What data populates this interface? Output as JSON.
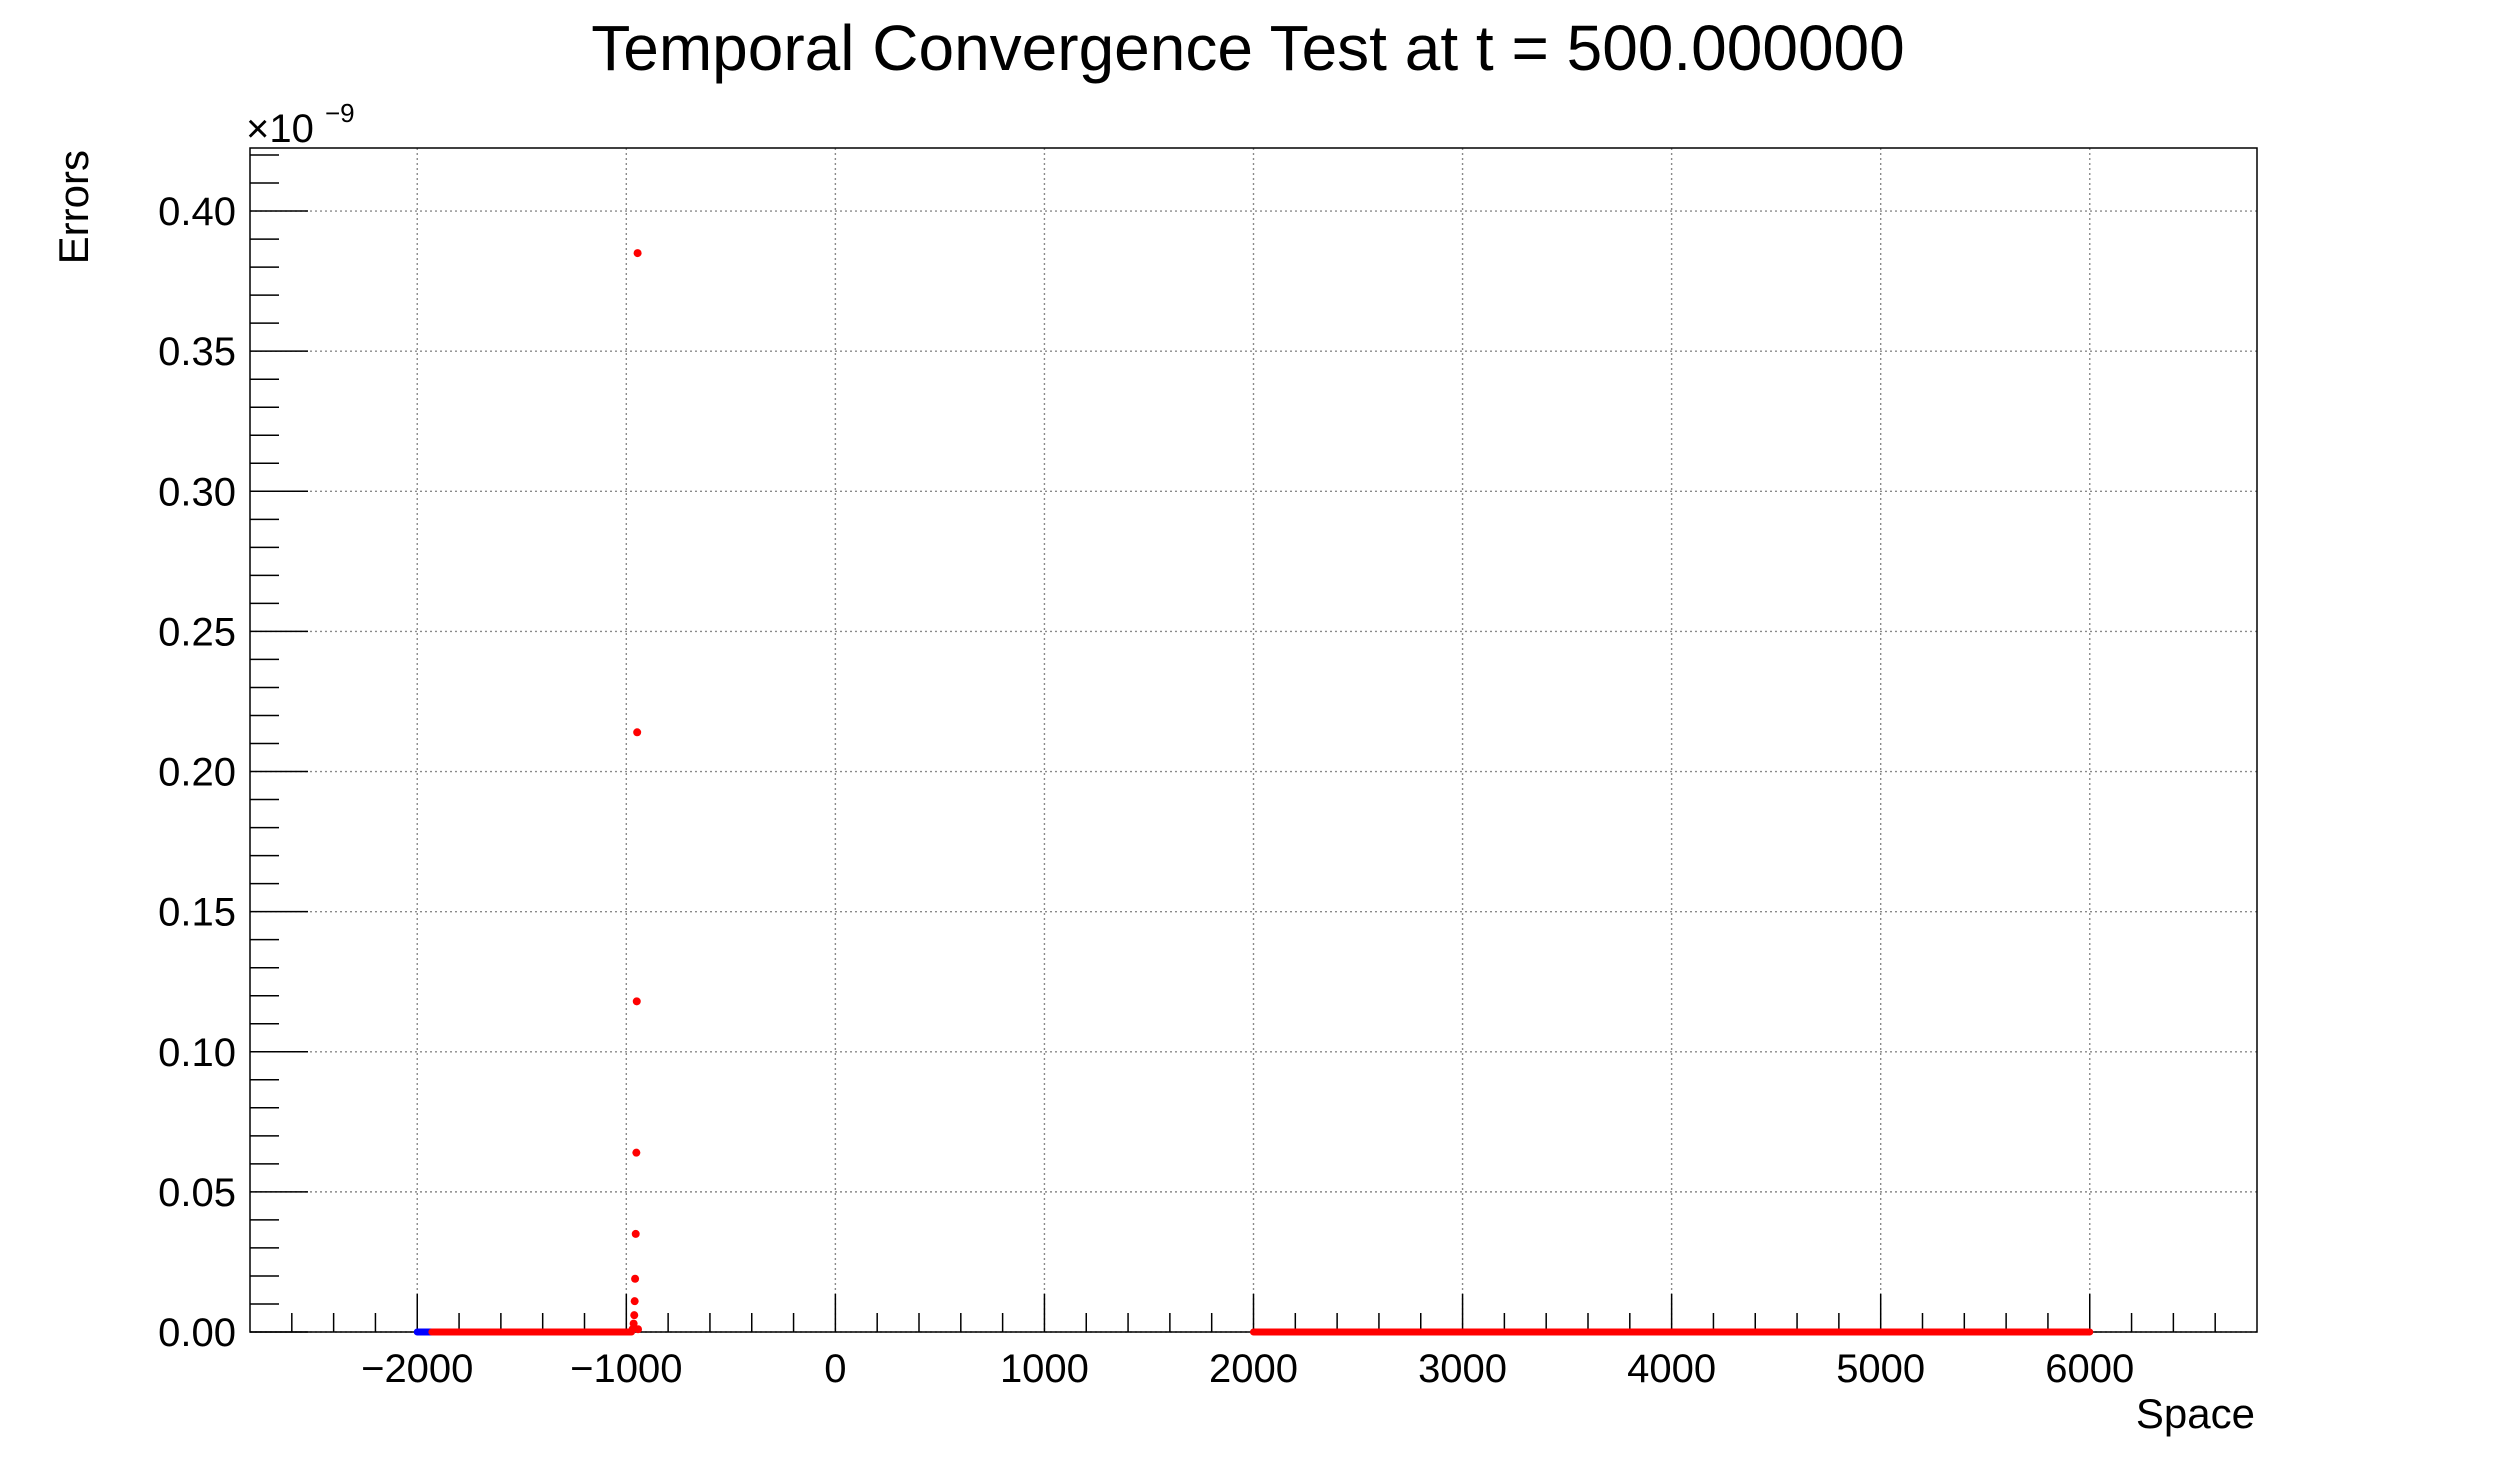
{
  "chart_data": {
    "type": "scatter",
    "title": "Temporal Convergence Test at t = 500.000000",
    "xlabel": "Space",
    "ylabel": "Errors",
    "y_multiplier_label": "×10",
    "y_multiplier_exponent": "−9",
    "xlim": [
      -2800,
      6800
    ],
    "ylim": [
      0,
      0.4225
    ],
    "x_ticks": [
      -2000,
      -1000,
      0,
      1000,
      2000,
      3000,
      4000,
      5000,
      6000
    ],
    "x_tick_labels": [
      "−2000",
      "−1000",
      "0",
      "1000",
      "2000",
      "3000",
      "4000",
      "5000",
      "6000"
    ],
    "y_ticks": [
      0.0,
      0.05,
      0.1,
      0.15,
      0.2,
      0.25,
      0.3,
      0.35,
      0.4
    ],
    "y_tick_labels": [
      "0.00",
      "0.05",
      "0.10",
      "0.15",
      "0.20",
      "0.25",
      "0.30",
      "0.35",
      "0.40"
    ],
    "grid": true,
    "colors": {
      "red": "#ff0000",
      "blue": "#0000ff"
    },
    "series": [
      {
        "color": "#0000ff",
        "segments": [
          {
            "x_start": -2000,
            "x_end": -1930,
            "y": 0.0
          }
        ],
        "x": [],
        "y": []
      },
      {
        "color": "#ff0000",
        "segments": [
          {
            "x_start": -1930,
            "x_end": -975,
            "y": 0.0
          },
          {
            "x_start": 2000,
            "x_end": 6000,
            "y": 0.0
          }
        ],
        "x": [
          -970,
          -965,
          -962,
          -960,
          -958,
          -955,
          -952,
          -950,
          -948,
          -946,
          -944
        ],
        "y": [
          0.001,
          0.003,
          0.006,
          0.011,
          0.019,
          0.035,
          0.064,
          0.118,
          0.214,
          0.385,
          0.001
        ]
      }
    ]
  }
}
